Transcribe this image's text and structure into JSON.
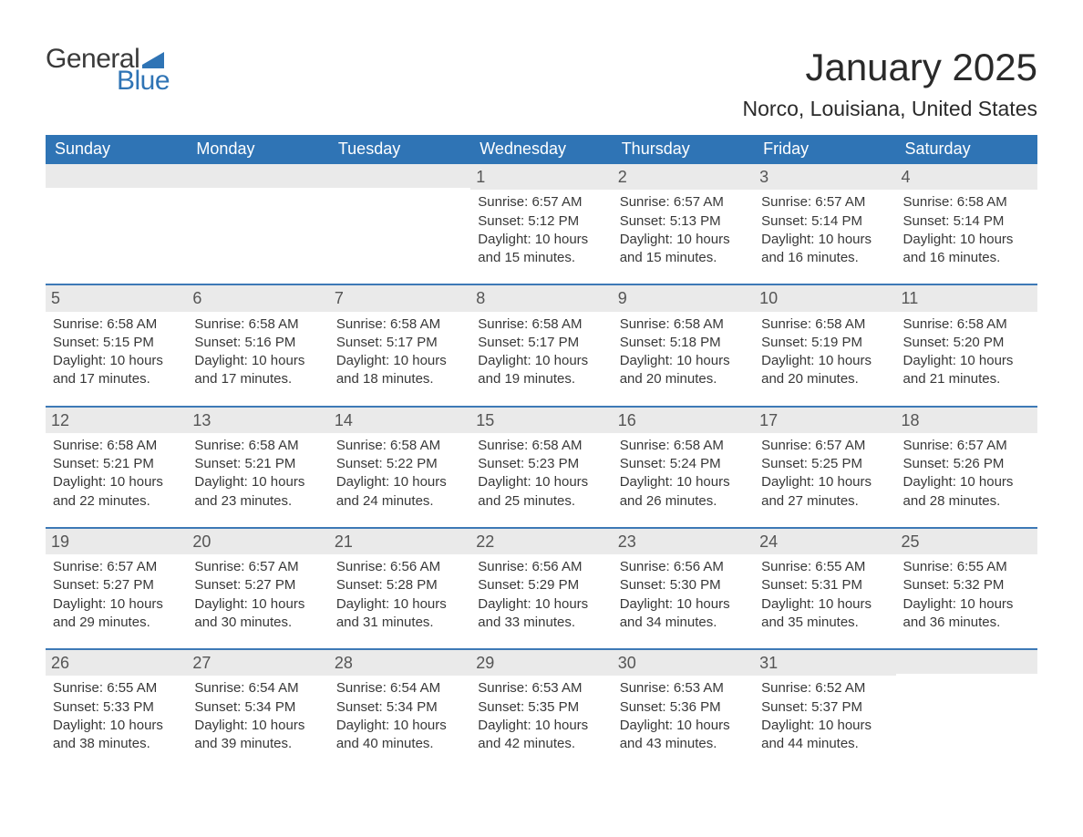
{
  "colors": {
    "header_bg": "#2f74b5",
    "header_text": "#ffffff",
    "daynum_bg": "#eaeaea",
    "daynum_text": "#555555",
    "body_text": "#383838",
    "week_border": "#3d79b6",
    "page_bg": "#ffffff",
    "logo_general": "#3a3a3a",
    "logo_blue": "#2f74b5"
  },
  "typography": {
    "month_title_size": 42,
    "location_size": 23,
    "weekday_size": 18,
    "daynum_size": 18,
    "body_size": 15,
    "logo_size": 30
  },
  "logo": {
    "general": "General",
    "blue": "Blue"
  },
  "title": "January 2025",
  "location": "Norco, Louisiana, United States",
  "weekdays": [
    "Sunday",
    "Monday",
    "Tuesday",
    "Wednesday",
    "Thursday",
    "Friday",
    "Saturday"
  ],
  "weeks": [
    [
      null,
      null,
      null,
      {
        "n": "1",
        "sunrise": "6:57 AM",
        "sunset": "5:12 PM",
        "dl1": "Daylight: 10 hours",
        "dl2": "and 15 minutes."
      },
      {
        "n": "2",
        "sunrise": "6:57 AM",
        "sunset": "5:13 PM",
        "dl1": "Daylight: 10 hours",
        "dl2": "and 15 minutes."
      },
      {
        "n": "3",
        "sunrise": "6:57 AM",
        "sunset": "5:14 PM",
        "dl1": "Daylight: 10 hours",
        "dl2": "and 16 minutes."
      },
      {
        "n": "4",
        "sunrise": "6:58 AM",
        "sunset": "5:14 PM",
        "dl1": "Daylight: 10 hours",
        "dl2": "and 16 minutes."
      }
    ],
    [
      {
        "n": "5",
        "sunrise": "6:58 AM",
        "sunset": "5:15 PM",
        "dl1": "Daylight: 10 hours",
        "dl2": "and 17 minutes."
      },
      {
        "n": "6",
        "sunrise": "6:58 AM",
        "sunset": "5:16 PM",
        "dl1": "Daylight: 10 hours",
        "dl2": "and 17 minutes."
      },
      {
        "n": "7",
        "sunrise": "6:58 AM",
        "sunset": "5:17 PM",
        "dl1": "Daylight: 10 hours",
        "dl2": "and 18 minutes."
      },
      {
        "n": "8",
        "sunrise": "6:58 AM",
        "sunset": "5:17 PM",
        "dl1": "Daylight: 10 hours",
        "dl2": "and 19 minutes."
      },
      {
        "n": "9",
        "sunrise": "6:58 AM",
        "sunset": "5:18 PM",
        "dl1": "Daylight: 10 hours",
        "dl2": "and 20 minutes."
      },
      {
        "n": "10",
        "sunrise": "6:58 AM",
        "sunset": "5:19 PM",
        "dl1": "Daylight: 10 hours",
        "dl2": "and 20 minutes."
      },
      {
        "n": "11",
        "sunrise": "6:58 AM",
        "sunset": "5:20 PM",
        "dl1": "Daylight: 10 hours",
        "dl2": "and 21 minutes."
      }
    ],
    [
      {
        "n": "12",
        "sunrise": "6:58 AM",
        "sunset": "5:21 PM",
        "dl1": "Daylight: 10 hours",
        "dl2": "and 22 minutes."
      },
      {
        "n": "13",
        "sunrise": "6:58 AM",
        "sunset": "5:21 PM",
        "dl1": "Daylight: 10 hours",
        "dl2": "and 23 minutes."
      },
      {
        "n": "14",
        "sunrise": "6:58 AM",
        "sunset": "5:22 PM",
        "dl1": "Daylight: 10 hours",
        "dl2": "and 24 minutes."
      },
      {
        "n": "15",
        "sunrise": "6:58 AM",
        "sunset": "5:23 PM",
        "dl1": "Daylight: 10 hours",
        "dl2": "and 25 minutes."
      },
      {
        "n": "16",
        "sunrise": "6:58 AM",
        "sunset": "5:24 PM",
        "dl1": "Daylight: 10 hours",
        "dl2": "and 26 minutes."
      },
      {
        "n": "17",
        "sunrise": "6:57 AM",
        "sunset": "5:25 PM",
        "dl1": "Daylight: 10 hours",
        "dl2": "and 27 minutes."
      },
      {
        "n": "18",
        "sunrise": "6:57 AM",
        "sunset": "5:26 PM",
        "dl1": "Daylight: 10 hours",
        "dl2": "and 28 minutes."
      }
    ],
    [
      {
        "n": "19",
        "sunrise": "6:57 AM",
        "sunset": "5:27 PM",
        "dl1": "Daylight: 10 hours",
        "dl2": "and 29 minutes."
      },
      {
        "n": "20",
        "sunrise": "6:57 AM",
        "sunset": "5:27 PM",
        "dl1": "Daylight: 10 hours",
        "dl2": "and 30 minutes."
      },
      {
        "n": "21",
        "sunrise": "6:56 AM",
        "sunset": "5:28 PM",
        "dl1": "Daylight: 10 hours",
        "dl2": "and 31 minutes."
      },
      {
        "n": "22",
        "sunrise": "6:56 AM",
        "sunset": "5:29 PM",
        "dl1": "Daylight: 10 hours",
        "dl2": "and 33 minutes."
      },
      {
        "n": "23",
        "sunrise": "6:56 AM",
        "sunset": "5:30 PM",
        "dl1": "Daylight: 10 hours",
        "dl2": "and 34 minutes."
      },
      {
        "n": "24",
        "sunrise": "6:55 AM",
        "sunset": "5:31 PM",
        "dl1": "Daylight: 10 hours",
        "dl2": "and 35 minutes."
      },
      {
        "n": "25",
        "sunrise": "6:55 AM",
        "sunset": "5:32 PM",
        "dl1": "Daylight: 10 hours",
        "dl2": "and 36 minutes."
      }
    ],
    [
      {
        "n": "26",
        "sunrise": "6:55 AM",
        "sunset": "5:33 PM",
        "dl1": "Daylight: 10 hours",
        "dl2": "and 38 minutes."
      },
      {
        "n": "27",
        "sunrise": "6:54 AM",
        "sunset": "5:34 PM",
        "dl1": "Daylight: 10 hours",
        "dl2": "and 39 minutes."
      },
      {
        "n": "28",
        "sunrise": "6:54 AM",
        "sunset": "5:34 PM",
        "dl1": "Daylight: 10 hours",
        "dl2": "and 40 minutes."
      },
      {
        "n": "29",
        "sunrise": "6:53 AM",
        "sunset": "5:35 PM",
        "dl1": "Daylight: 10 hours",
        "dl2": "and 42 minutes."
      },
      {
        "n": "30",
        "sunrise": "6:53 AM",
        "sunset": "5:36 PM",
        "dl1": "Daylight: 10 hours",
        "dl2": "and 43 minutes."
      },
      {
        "n": "31",
        "sunrise": "6:52 AM",
        "sunset": "5:37 PM",
        "dl1": "Daylight: 10 hours",
        "dl2": "and 44 minutes."
      },
      null
    ]
  ],
  "labels": {
    "sunrise_prefix": "Sunrise: ",
    "sunset_prefix": "Sunset: "
  }
}
